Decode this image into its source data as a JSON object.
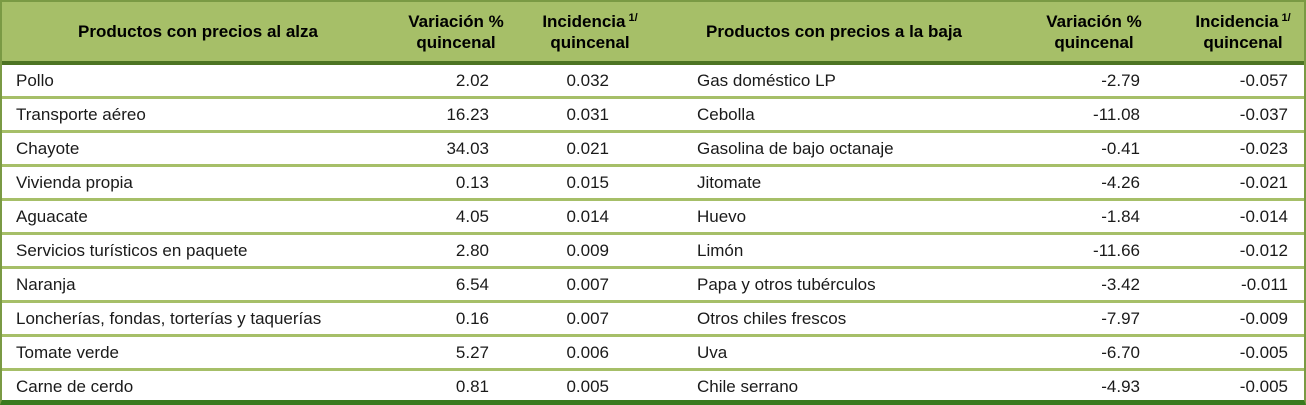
{
  "colors": {
    "header_bg": "#a6bf68",
    "header_underline": "#4d7423",
    "row_separator": "#a6bf68",
    "frame": "#7a9a44",
    "bottom_border": "#3a7a1f",
    "text": "#1a1a1a"
  },
  "header": {
    "alza_title": "Productos con precios al alza",
    "baja_title": "Productos con precios a la baja",
    "variacion_line1": "Variación %",
    "variacion_line2": "quincenal",
    "incidencia_line1": "Incidencia",
    "incidencia_sup": "1/",
    "incidencia_line2": "quincenal"
  },
  "rows": [
    {
      "alza_name": "Pollo",
      "alza_var": "2.02",
      "alza_inc": "0.032",
      "baja_name": "Gas doméstico LP",
      "baja_var": "-2.79",
      "baja_inc": "-0.057"
    },
    {
      "alza_name": "Transporte aéreo",
      "alza_var": "16.23",
      "alza_inc": "0.031",
      "baja_name": "Cebolla",
      "baja_var": "-11.08",
      "baja_inc": "-0.037"
    },
    {
      "alza_name": "Chayote",
      "alza_var": "34.03",
      "alza_inc": "0.021",
      "baja_name": "Gasolina de bajo octanaje",
      "baja_var": "-0.41",
      "baja_inc": "-0.023"
    },
    {
      "alza_name": "Vivienda propia",
      "alza_var": "0.13",
      "alza_inc": "0.015",
      "baja_name": "Jitomate",
      "baja_var": "-4.26",
      "baja_inc": "-0.021"
    },
    {
      "alza_name": "Aguacate",
      "alza_var": "4.05",
      "alza_inc": "0.014",
      "baja_name": "Huevo",
      "baja_var": "-1.84",
      "baja_inc": "-0.014"
    },
    {
      "alza_name": "Servicios turísticos en paquete",
      "alza_var": "2.80",
      "alza_inc": "0.009",
      "baja_name": "Limón",
      "baja_var": "-11.66",
      "baja_inc": "-0.012"
    },
    {
      "alza_name": "Naranja",
      "alza_var": "6.54",
      "alza_inc": "0.007",
      "baja_name": "Papa y otros tubérculos",
      "baja_var": "-3.42",
      "baja_inc": "-0.011"
    },
    {
      "alza_name": "Loncherías, fondas, torterías y taquerías",
      "alza_var": "0.16",
      "alza_inc": "0.007",
      "baja_name": "Otros chiles frescos",
      "baja_var": "-7.97",
      "baja_inc": "-0.009"
    },
    {
      "alza_name": "Tomate verde",
      "alza_var": "5.27",
      "alza_inc": "0.006",
      "baja_name": "Uva",
      "baja_var": "-6.70",
      "baja_inc": "-0.005"
    },
    {
      "alza_name": "Carne de cerdo",
      "alza_var": "0.81",
      "alza_inc": "0.005",
      "baja_name": "Chile serrano",
      "baja_var": "-4.93",
      "baja_inc": "-0.005"
    }
  ]
}
